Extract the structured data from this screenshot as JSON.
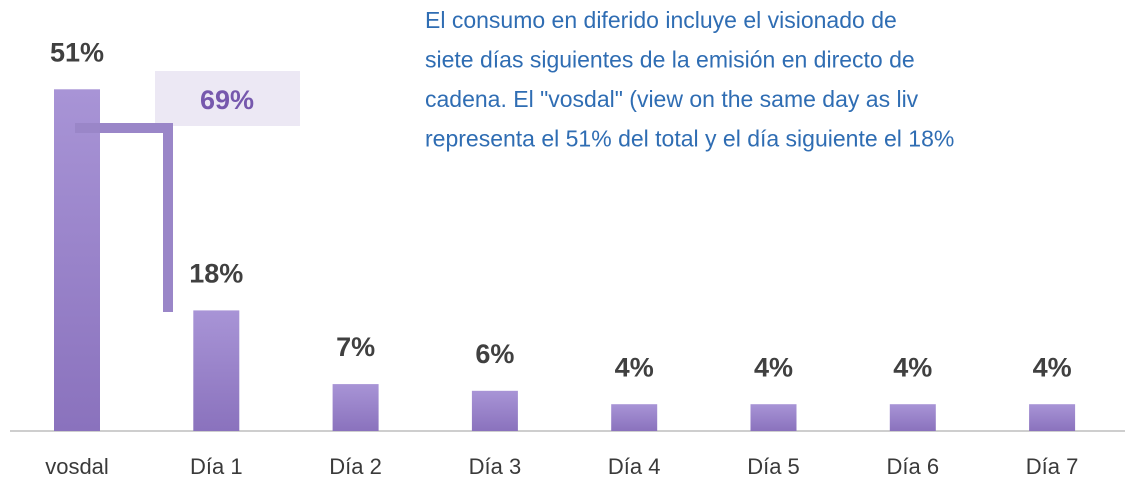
{
  "chart_data": {
    "type": "bar",
    "categories": [
      "vosdal",
      "Día 1",
      "Día 2",
      "Día 3",
      "Día 4",
      "Día 5",
      "Día 6",
      "Día 7"
    ],
    "values": [
      51,
      18,
      7,
      6,
      4,
      4,
      4,
      4
    ],
    "value_labels": [
      "51%",
      "18%",
      "7%",
      "6%",
      "4%",
      "4%",
      "4%",
      "4%"
    ],
    "color": "#9079c2",
    "annotations": [
      "69%"
    ],
    "note_lines": [
      "El consumo en diferido incluye el visionado de",
      "siete días siguientes de la emisión en directo de",
      "cadena. El \"vosdal\" (view on the same day as liv",
      "representa el 51% del total y el día siguiente el 18%"
    ]
  }
}
